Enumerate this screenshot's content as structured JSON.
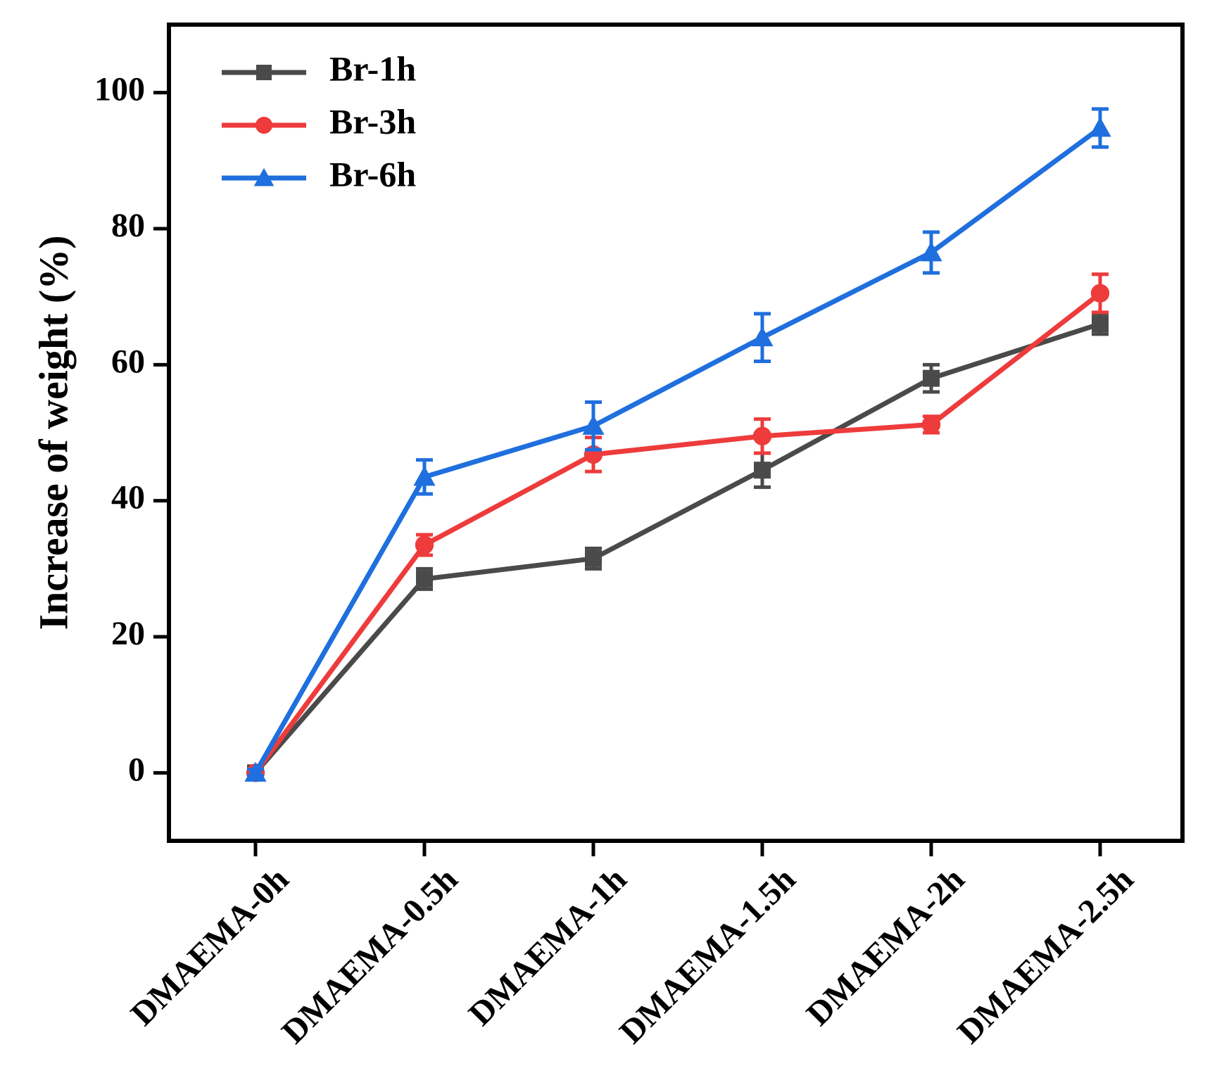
{
  "chart_data": {
    "type": "line",
    "title": "",
    "xlabel": "",
    "ylabel": "Increase of weight (%)",
    "ylim": [
      -10,
      110
    ],
    "yticks": [
      0,
      20,
      40,
      60,
      80,
      100
    ],
    "grid": false,
    "legend_position": "top-left",
    "categories": [
      "DMAEMA-0h",
      "DMAEMA-0.5h",
      "DMAEMA-1h",
      "DMAEMA-1.5h",
      "DMAEMA-2h",
      "DMAEMA-2.5h"
    ],
    "series": [
      {
        "name": "Br-1h",
        "color": "#4a4a4a",
        "marker": "square",
        "values": [
          0,
          28.5,
          31.5,
          44.5,
          58,
          66
        ],
        "errors": [
          0.5,
          1.5,
          1.5,
          2.5,
          2,
          1.5
        ]
      },
      {
        "name": "Br-3h",
        "color": "#ee3b3b",
        "marker": "circle",
        "values": [
          0,
          33.5,
          46.8,
          49.5,
          51.2,
          70.5
        ],
        "errors": [
          0.5,
          1.5,
          2.5,
          2.5,
          1.2,
          2.8
        ]
      },
      {
        "name": "Br-6h",
        "color": "#1f6fde",
        "marker": "triangle",
        "values": [
          0,
          43.5,
          51,
          64,
          76.5,
          94.8
        ],
        "errors": [
          0.5,
          2.5,
          3.5,
          3.5,
          3,
          2.8
        ]
      }
    ]
  }
}
